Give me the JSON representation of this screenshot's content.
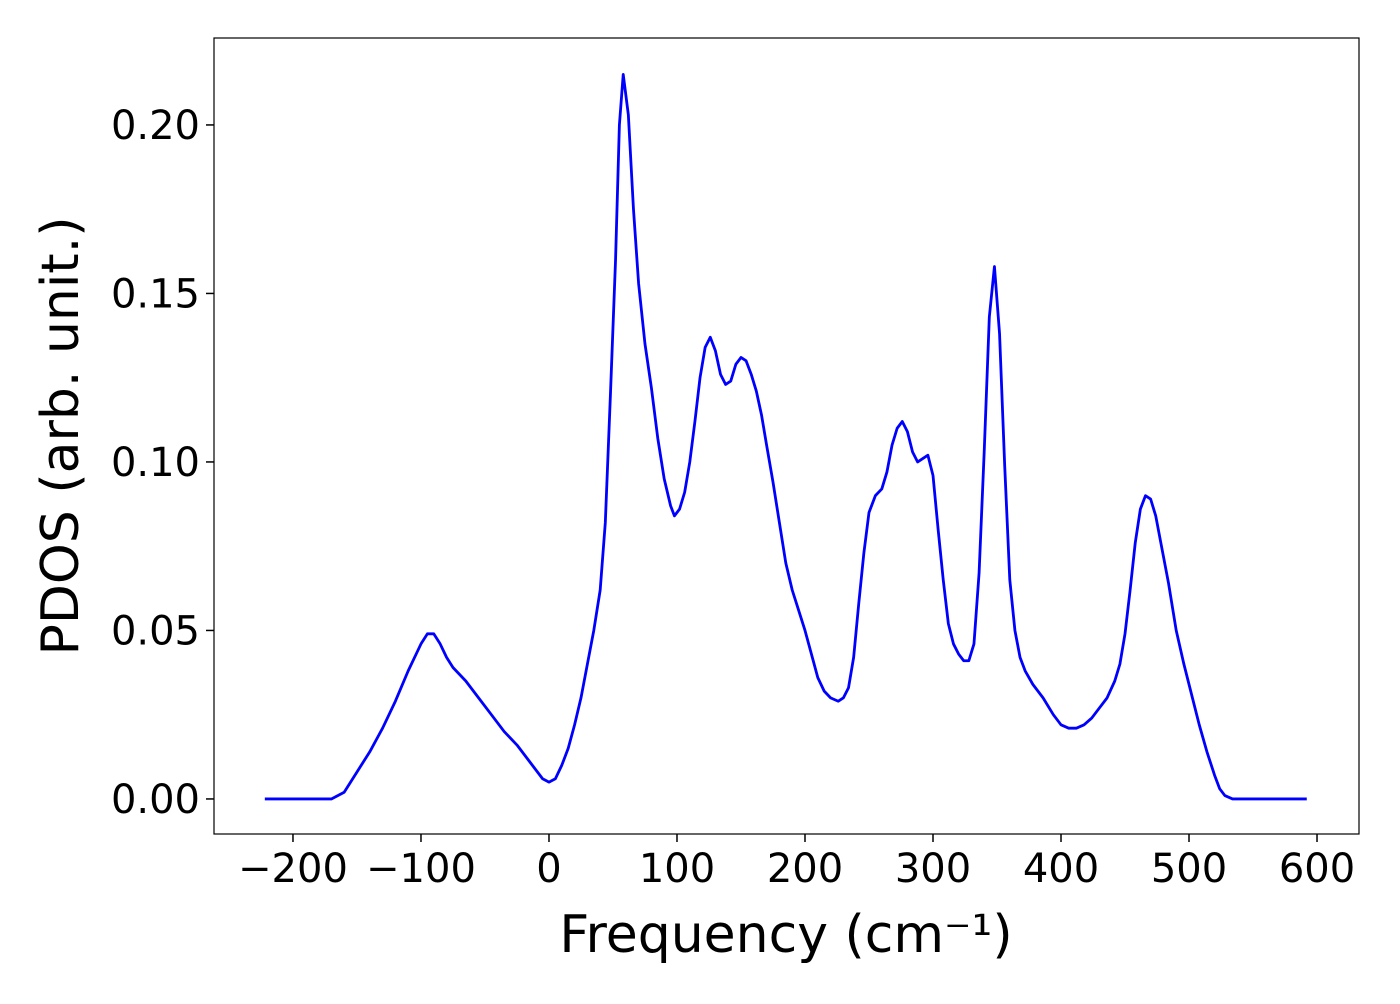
{
  "chart_data": {
    "type": "line",
    "x_label": "Frequency (cm⁻¹)",
    "y_label": "PDOS (arb. unit.)",
    "x": [
      -222,
      -170,
      -160,
      -150,
      -140,
      -130,
      -120,
      -110,
      -100,
      -95,
      -90,
      -85,
      -80,
      -75,
      -65,
      -55,
      -45,
      -35,
      -25,
      -15,
      -5,
      0,
      5,
      10,
      15,
      20,
      25,
      30,
      35,
      40,
      44,
      48,
      52,
      55,
      58,
      62,
      66,
      70,
      75,
      80,
      85,
      90,
      95,
      98,
      102,
      106,
      110,
      114,
      118,
      122,
      126,
      130,
      134,
      138,
      142,
      146,
      150,
      154,
      158,
      162,
      166,
      170,
      175,
      180,
      185,
      190,
      195,
      200,
      205,
      210,
      215,
      220,
      226,
      230,
      234,
      238,
      242,
      246,
      250,
      255,
      260,
      264,
      268,
      272,
      276,
      280,
      284,
      288,
      292,
      296,
      300,
      304,
      308,
      312,
      316,
      320,
      324,
      328,
      332,
      336,
      340,
      344,
      348,
      352,
      356,
      360,
      364,
      368,
      372,
      378,
      386,
      394,
      400,
      406,
      412,
      418,
      424,
      430,
      436,
      442,
      446,
      450,
      454,
      458,
      462,
      466,
      470,
      474,
      478,
      484,
      490,
      496,
      502,
      508,
      514,
      520,
      524,
      528,
      534,
      592
    ],
    "series": [
      {
        "color": "#0000ff",
        "values": [
          0,
          0,
          0.002,
          0.008,
          0.014,
          0.021,
          0.029,
          0.038,
          0.046,
          0.049,
          0.049,
          0.046,
          0.042,
          0.039,
          0.035,
          0.03,
          0.025,
          0.02,
          0.016,
          0.011,
          0.006,
          0.005,
          0.006,
          0.01,
          0.015,
          0.022,
          0.03,
          0.04,
          0.05,
          0.062,
          0.082,
          0.12,
          0.16,
          0.2,
          0.215,
          0.203,
          0.175,
          0.153,
          0.135,
          0.122,
          0.107,
          0.095,
          0.087,
          0.084,
          0.086,
          0.091,
          0.1,
          0.112,
          0.125,
          0.134,
          0.137,
          0.133,
          0.126,
          0.123,
          0.124,
          0.129,
          0.131,
          0.13,
          0.126,
          0.121,
          0.114,
          0.105,
          0.094,
          0.082,
          0.07,
          0.062,
          0.056,
          0.05,
          0.043,
          0.036,
          0.032,
          0.03,
          0.029,
          0.03,
          0.033,
          0.042,
          0.058,
          0.073,
          0.085,
          0.09,
          0.092,
          0.097,
          0.105,
          0.11,
          0.112,
          0.109,
          0.103,
          0.1,
          0.101,
          0.102,
          0.096,
          0.08,
          0.065,
          0.052,
          0.046,
          0.043,
          0.041,
          0.041,
          0.046,
          0.067,
          0.103,
          0.143,
          0.158,
          0.138,
          0.099,
          0.065,
          0.05,
          0.042,
          0.038,
          0.034,
          0.03,
          0.025,
          0.022,
          0.021,
          0.021,
          0.022,
          0.024,
          0.027,
          0.03,
          0.035,
          0.04,
          0.049,
          0.062,
          0.076,
          0.086,
          0.09,
          0.089,
          0.084,
          0.076,
          0.064,
          0.05,
          0.04,
          0.031,
          0.022,
          0.014,
          0.007,
          0.003,
          0.001,
          0,
          0
        ]
      }
    ],
    "xlim": [
      -261.7,
      632.8
    ],
    "ylim": [
      -0.0104,
      0.2258
    ],
    "xticks": [
      {
        "value": -200,
        "label": "−200"
      },
      {
        "value": -100,
        "label": "−100"
      },
      0,
      100,
      200,
      300,
      400,
      500,
      600
    ],
    "yticks": [
      {
        "value": 0,
        "label": "0.00"
      },
      {
        "value": 0.05,
        "label": "0.05"
      },
      {
        "value": 0.1,
        "label": "0.10"
      },
      {
        "value": 0.15,
        "label": "0.15"
      },
      {
        "value": 0.2,
        "label": "0.20"
      }
    ],
    "grid": false
  }
}
